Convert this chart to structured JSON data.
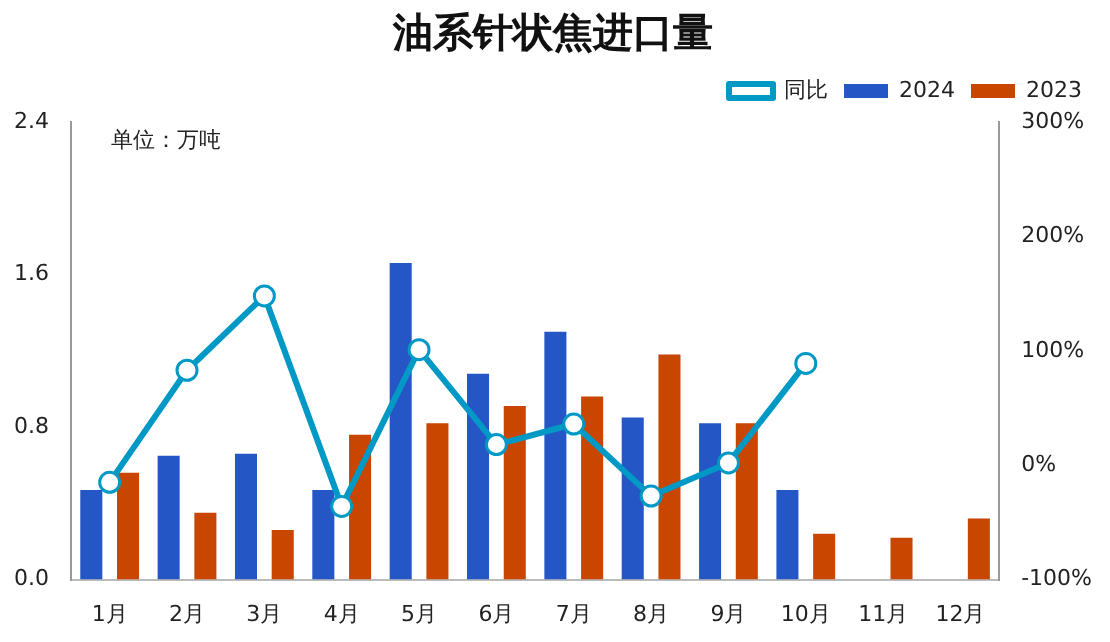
{
  "chart_data": {
    "type": "bar",
    "title": "油系针状焦进口量",
    "annotations": [
      "单位：万吨"
    ],
    "categories": [
      "1月",
      "2月",
      "3月",
      "4月",
      "5月",
      "6月",
      "7月",
      "8月",
      "9月",
      "10月",
      "11月",
      "12月"
    ],
    "series": [
      {
        "name": "2024",
        "color": "#2457c5",
        "values": [
          0.47,
          0.65,
          0.66,
          0.47,
          1.66,
          1.08,
          1.3,
          0.85,
          0.82,
          0.47,
          null,
          null
        ]
      },
      {
        "name": "2023",
        "color": "#c84600",
        "values": [
          0.56,
          0.35,
          0.26,
          0.76,
          0.82,
          0.91,
          0.96,
          1.18,
          0.82,
          0.24,
          0.22,
          0.32
        ]
      },
      {
        "name": "同比",
        "type": "line",
        "axis": "y2",
        "color": "#0099c6",
        "values": [
          -15,
          83,
          148,
          -36,
          101,
          18,
          36,
          -27,
          2,
          89,
          null,
          null
        ]
      }
    ],
    "ylim": [
      0,
      2.4
    ],
    "yticks": [
      {
        "value": 0,
        "label": "0.0"
      },
      {
        "value": 0.8,
        "label": "0.8"
      },
      1.6,
      2.4
    ],
    "y2lim": [
      -100,
      300
    ],
    "y2ticks": [
      {
        "value": -100,
        "label": "-100%"
      },
      {
        "value": 0,
        "label": "0%"
      },
      {
        "value": 100,
        "label": "100%"
      },
      {
        "value": 200,
        "label": "200%"
      },
      {
        "value": 300,
        "label": "300%"
      }
    ],
    "grid": false,
    "legend": "top right",
    "marker": "circle",
    "line_style": "solid"
  }
}
